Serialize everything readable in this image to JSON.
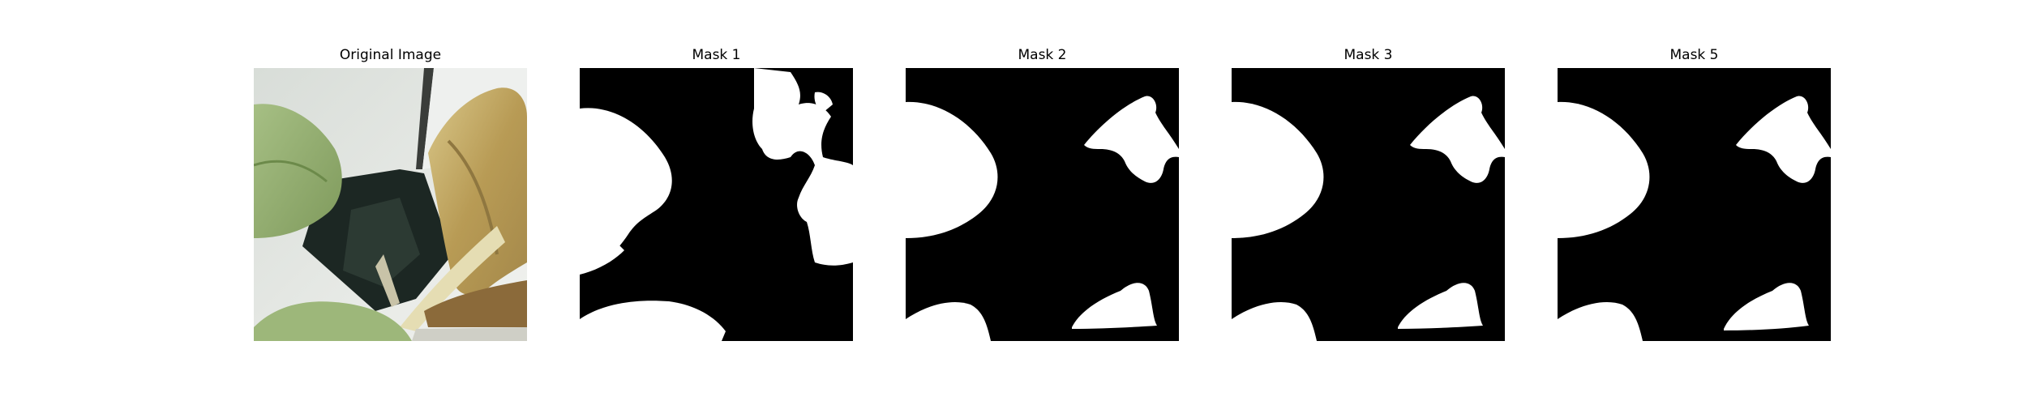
{
  "figure": {
    "panels": [
      {
        "title": "Original Image"
      },
      {
        "title": "Mask 1"
      },
      {
        "title": "Mask 2"
      },
      {
        "title": "Mask 3"
      },
      {
        "title": "Mask 5"
      }
    ]
  },
  "colors": {
    "background": "#ffffff",
    "mask_fill": "#000000",
    "mask_region": "#ffffff",
    "leaf_green": "#9db77a",
    "leaf_yellow": "#c9b277",
    "dark_panel": "#1c2723",
    "wall": "#e6e8e6"
  }
}
